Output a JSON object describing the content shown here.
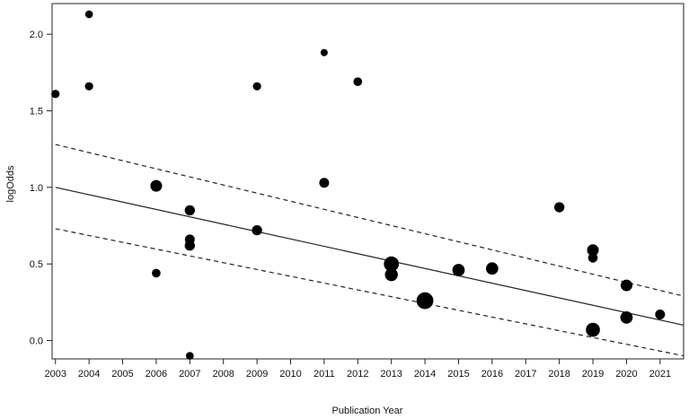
{
  "chart_data": {
    "type": "scatter",
    "title": "",
    "xlabel": "Publication Year",
    "ylabel": "logOdds",
    "xlim": [
      2002.9,
      2021.7
    ],
    "ylim": [
      -0.12,
      2.2
    ],
    "x_ticks": [
      2003,
      2004,
      2005,
      2006,
      2007,
      2008,
      2009,
      2010,
      2011,
      2012,
      2013,
      2014,
      2015,
      2016,
      2017,
      2018,
      2019,
      2020,
      2021
    ],
    "x_tick_labels": [
      "2003",
      "2004",
      "2005",
      "2006",
      "2007",
      "2008",
      "2009",
      "2010",
      "2011",
      "2012",
      "2013",
      "2014",
      "2015",
      "2016",
      "2017",
      "2018",
      "2019",
      "2020",
      "2021"
    ],
    "y_ticks": [
      0.0,
      0.5,
      1.0,
      1.5,
      2.0
    ],
    "y_tick_labels": [
      "0.0",
      "0.5",
      "1.0",
      "1.5",
      "2.0"
    ],
    "grid": false,
    "marker_color": "#000000",
    "points": [
      {
        "x": 2003,
        "y": 1.61,
        "weight": 1
      },
      {
        "x": 2004,
        "y": 2.13,
        "weight": 0.8
      },
      {
        "x": 2004,
        "y": 1.66,
        "weight": 1
      },
      {
        "x": 2006,
        "y": 1.01,
        "weight": 3
      },
      {
        "x": 2006,
        "y": 0.44,
        "weight": 1.2
      },
      {
        "x": 2007,
        "y": 0.85,
        "weight": 2
      },
      {
        "x": 2007,
        "y": 0.66,
        "weight": 1.8
      },
      {
        "x": 2007,
        "y": 0.62,
        "weight": 2
      },
      {
        "x": 2007,
        "y": -0.1,
        "weight": 0.8
      },
      {
        "x": 2009,
        "y": 1.66,
        "weight": 1
      },
      {
        "x": 2009,
        "y": 0.72,
        "weight": 2
      },
      {
        "x": 2011,
        "y": 1.88,
        "weight": 0.6
      },
      {
        "x": 2011,
        "y": 1.03,
        "weight": 1.8
      },
      {
        "x": 2012,
        "y": 1.69,
        "weight": 1.2
      },
      {
        "x": 2013,
        "y": 0.5,
        "weight": 6
      },
      {
        "x": 2013,
        "y": 0.43,
        "weight": 4
      },
      {
        "x": 2014,
        "y": 0.26,
        "weight": 8
      },
      {
        "x": 2015,
        "y": 0.46,
        "weight": 3.5
      },
      {
        "x": 2016,
        "y": 0.47,
        "weight": 3.5
      },
      {
        "x": 2018,
        "y": 0.87,
        "weight": 2
      },
      {
        "x": 2019,
        "y": 0.59,
        "weight": 3
      },
      {
        "x": 2019,
        "y": 0.54,
        "weight": 1.6
      },
      {
        "x": 2019,
        "y": 0.07,
        "weight": 5
      },
      {
        "x": 2020,
        "y": 0.36,
        "weight": 3
      },
      {
        "x": 2020,
        "y": 0.15,
        "weight": 3.5
      },
      {
        "x": 2021,
        "y": 0.17,
        "weight": 1.8
      }
    ],
    "fit_line": {
      "x": [
        2003,
        2021.7
      ],
      "y": [
        1.0,
        0.1
      ]
    },
    "ci_upper": {
      "x": [
        2003,
        2021.7
      ],
      "y": [
        1.28,
        0.29
      ]
    },
    "ci_lower": {
      "x": [
        2003,
        2021.7
      ],
      "y": [
        0.73,
        -0.1
      ]
    }
  }
}
